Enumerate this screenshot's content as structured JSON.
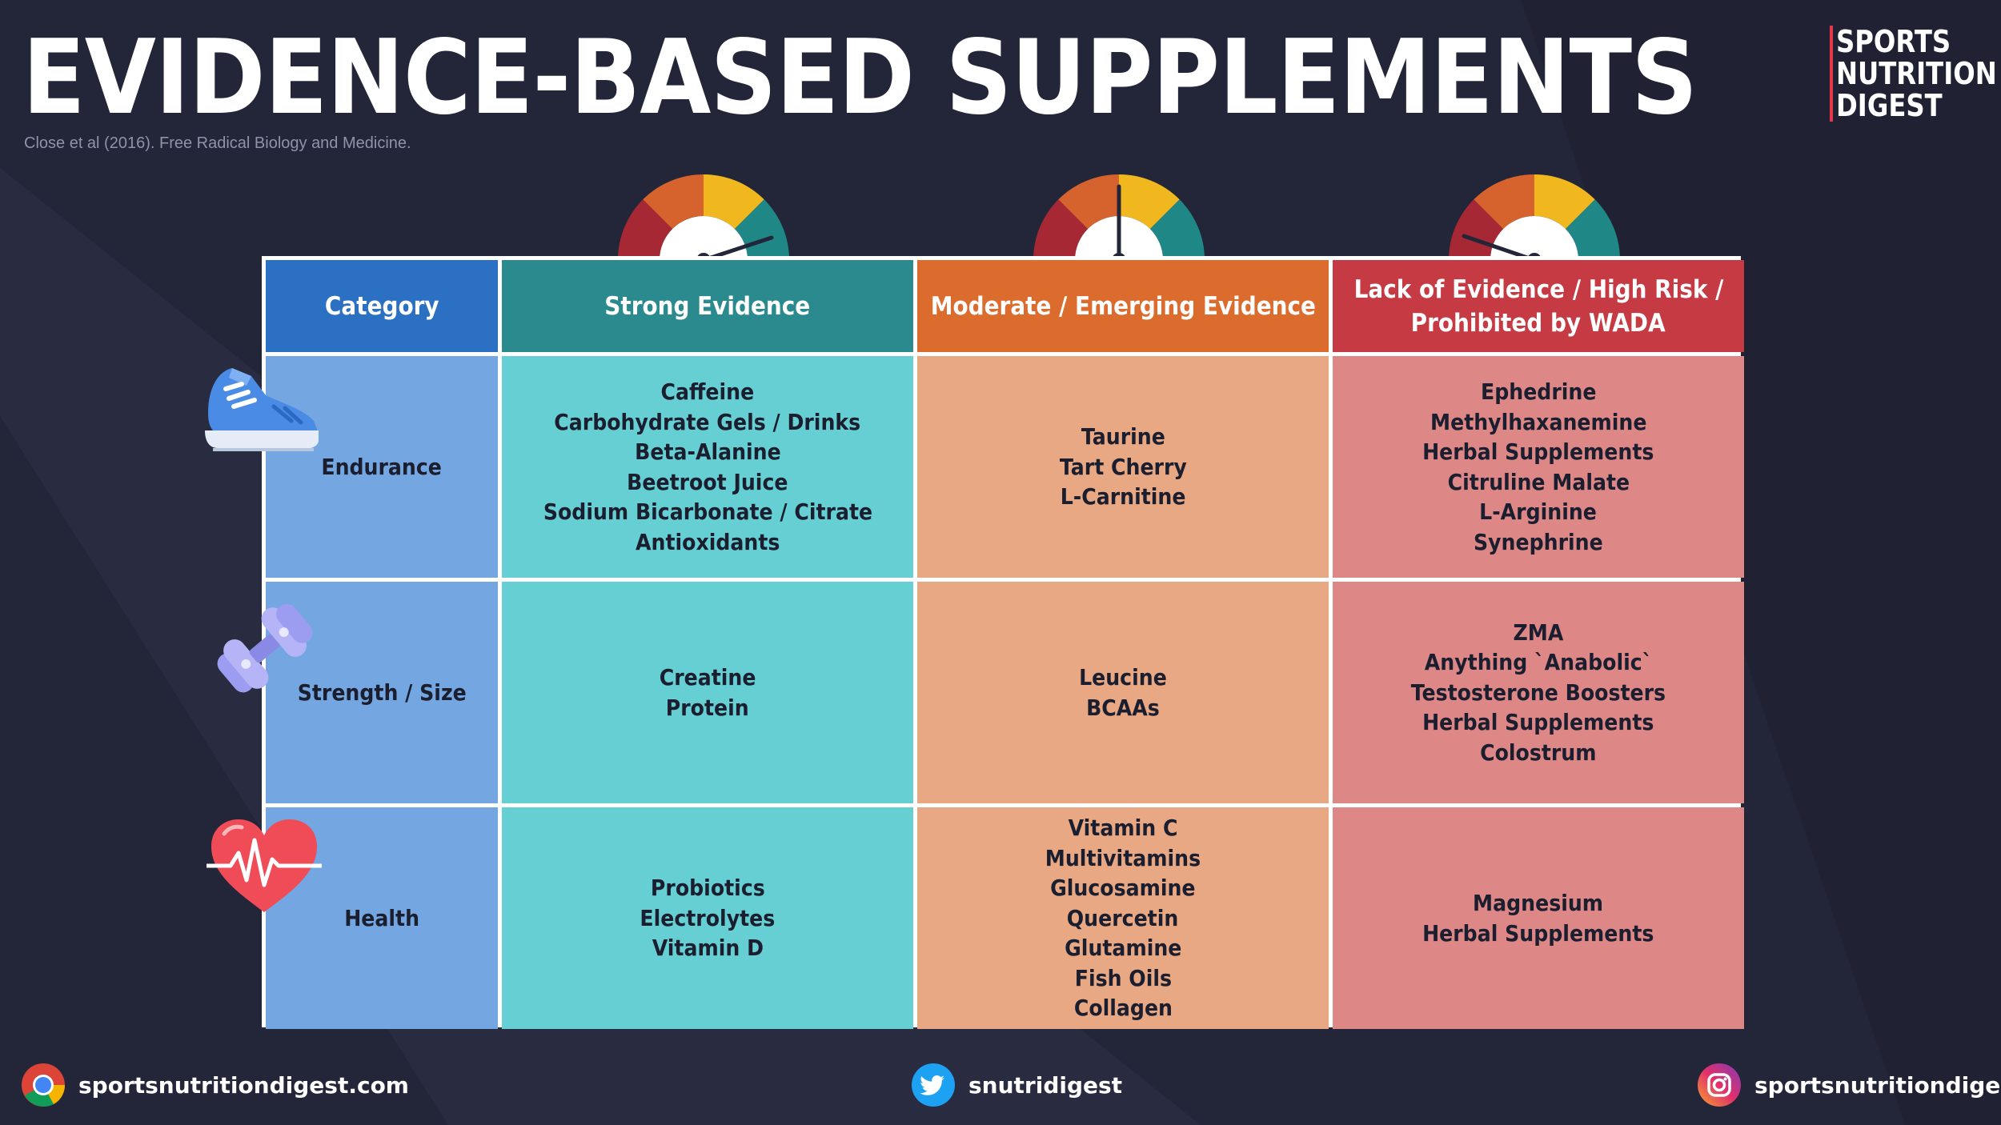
{
  "title": "EVIDENCE-BASED SUPPLEMENTS",
  "citation": "Close et al (2016). Free Radical Biology and Medicine.",
  "brand": {
    "line1": "SPORTS",
    "line2": "NUTRITION",
    "line3": "DIGEST"
  },
  "colors": {
    "background": "#232638",
    "category_header": "#2b70c2",
    "strong_header": "#2a8a8d",
    "moderate_header": "#dc6b2e",
    "lack_header": "#c53a43",
    "category_cell": "#74a7e1",
    "strong_cell": "#66cfd3",
    "moderate_cell": "#e9a884",
    "lack_cell": "#de8787"
  },
  "gauges": [
    {
      "column": "Strong Evidence",
      "level": "high"
    },
    {
      "column": "Moderate / Emerging Evidence",
      "level": "middle"
    },
    {
      "column": "Lack of Evidence / High Risk / Prohibited by WADA",
      "level": "low"
    }
  ],
  "headers": {
    "category": "Category",
    "strong": "Strong Evidence",
    "moderate": "Moderate / Emerging Evidence",
    "lack_line1": "Lack of Evidence / High Risk /",
    "lack_line2": "Prohibited by WADA"
  },
  "rows": [
    {
      "category": "Endurance",
      "icon": "running-shoe-icon",
      "strong": [
        "Caffeine",
        "Carbohydrate Gels / Drinks",
        "Beta-Alanine",
        "Beetroot Juice",
        "Sodium Bicarbonate / Citrate",
        "Antioxidants"
      ],
      "moderate": [
        "Taurine",
        "Tart Cherry",
        "L-Carnitine"
      ],
      "lack": [
        "Ephedrine",
        "Methylhaxanemine",
        "Herbal Supplements",
        "Citruline Malate",
        "L-Arginine",
        "Synephrine"
      ]
    },
    {
      "category": "Strength / Size",
      "icon": "dumbbell-icon",
      "strong": [
        "Creatine",
        "Protein"
      ],
      "moderate": [
        "Leucine",
        "BCAAs"
      ],
      "lack": [
        "ZMA",
        "Anything `Anabolic`",
        "Testosterone Boosters",
        "Herbal Supplements",
        "Colostrum"
      ]
    },
    {
      "category": "Health",
      "icon": "heart-pulse-icon",
      "strong": [
        "Probiotics",
        "Electrolytes",
        "Vitamin D"
      ],
      "moderate": [
        "Vitamin C",
        "Multivitamins",
        "Glucosamine",
        "Quercetin",
        "Glutamine",
        "Fish Oils",
        "Collagen"
      ],
      "lack": [
        "Magnesium",
        "Herbal Supplements"
      ]
    }
  ],
  "footer": {
    "website": "sportsnutritiondigest.com",
    "twitter": "snutridigest",
    "instagram": "sportsnutritiondigest"
  }
}
